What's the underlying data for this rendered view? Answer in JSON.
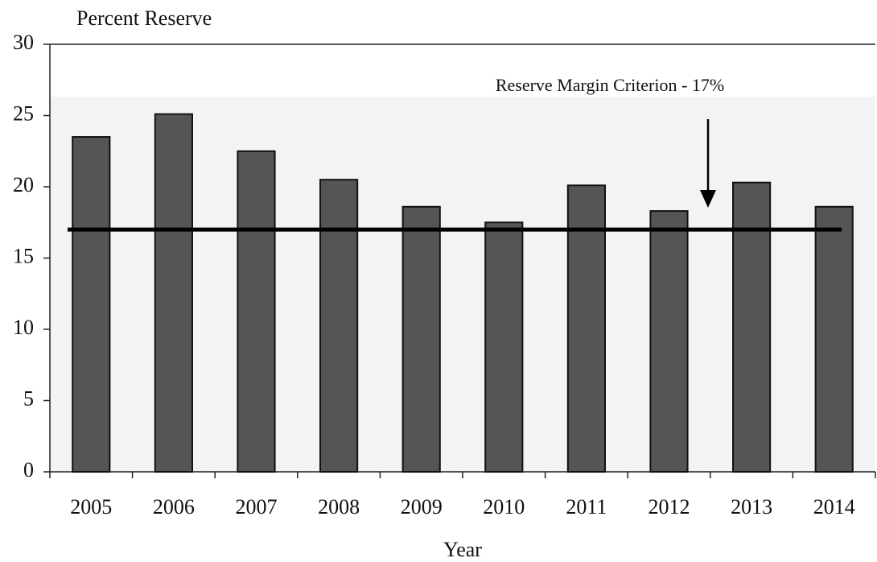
{
  "chart_data": {
    "type": "bar",
    "title": "Percent Reserve",
    "x_label": "Year",
    "annotation": "Reserve Margin Criterion - 17%",
    "categories": [
      "2005",
      "2006",
      "2007",
      "2008",
      "2009",
      "2010",
      "2011",
      "2012",
      "2013",
      "2014"
    ],
    "values": [
      23.5,
      25.1,
      22.5,
      20.5,
      18.6,
      17.5,
      20.1,
      18.3,
      20.3,
      18.6
    ],
    "color": "#555555",
    "reference_line": 17,
    "ylim": [
      0,
      30
    ],
    "yticks": [
      0,
      5,
      10,
      15,
      20,
      25,
      30
    ],
    "grid": false
  }
}
